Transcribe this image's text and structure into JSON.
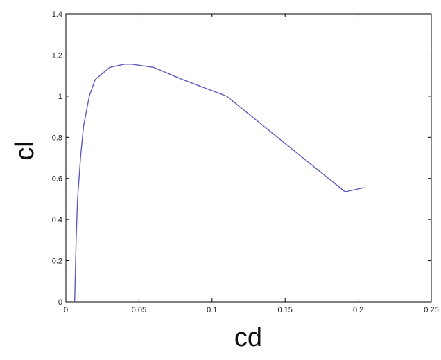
{
  "chart_data": {
    "type": "line",
    "title": "",
    "xlabel": "cd",
    "ylabel": "cl",
    "xlim": [
      0,
      0.25
    ],
    "ylim": [
      0,
      1.4
    ],
    "grid": false,
    "x_ticks": [
      0,
      0.05,
      0.1,
      0.15,
      0.2,
      0.25
    ],
    "x_tick_labels": [
      "0",
      "0.05",
      "0.1",
      "0.15",
      "0.2",
      "0.25"
    ],
    "y_ticks": [
      0,
      0.2,
      0.4,
      0.6,
      0.8,
      1.0,
      1.2,
      1.4
    ],
    "y_tick_labels": [
      "0",
      "0.2",
      "0.4",
      "0.6",
      "0.8",
      "1",
      "1.2",
      "1.4"
    ],
    "series": [
      {
        "color": "#5b5bbf",
        "x": [
          0.006,
          0.007,
          0.008,
          0.01,
          0.012,
          0.016,
          0.02,
          0.03,
          0.04,
          0.045,
          0.06,
          0.08,
          0.11,
          0.15,
          0.191,
          0.204
        ],
        "y": [
          0.0,
          0.3,
          0.5,
          0.7,
          0.85,
          1.0,
          1.08,
          1.14,
          1.155,
          1.155,
          1.14,
          1.08,
          1.0,
          0.77,
          0.535,
          0.555
        ]
      }
    ]
  }
}
